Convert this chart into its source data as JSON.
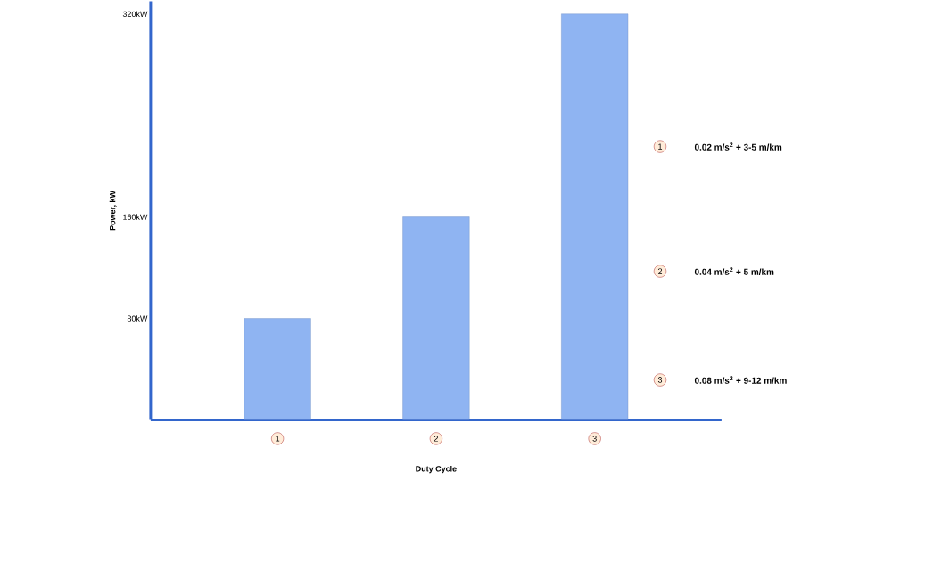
{
  "chart_data": {
    "type": "bar",
    "xlabel": "Duty Cycle",
    "ylabel": "Power, kW",
    "categories": [
      "1",
      "2",
      "3"
    ],
    "values": [
      80,
      160,
      320
    ],
    "color": "#8fb4f2",
    "ylim": [
      0,
      330
    ],
    "yticks": [
      {
        "value": 80,
        "label": "80kW"
      },
      {
        "value": 160,
        "label": "160kW"
      },
      {
        "value": 320,
        "label": "320kW"
      }
    ],
    "annotations": [
      "0.02 m/s$^{2}$ + 3-5 m/km",
      "0.04 m/s$^{2}$ + 5 m/km",
      "0.08 m/s$^{2}$ + 9-12 m/km"
    ]
  }
}
